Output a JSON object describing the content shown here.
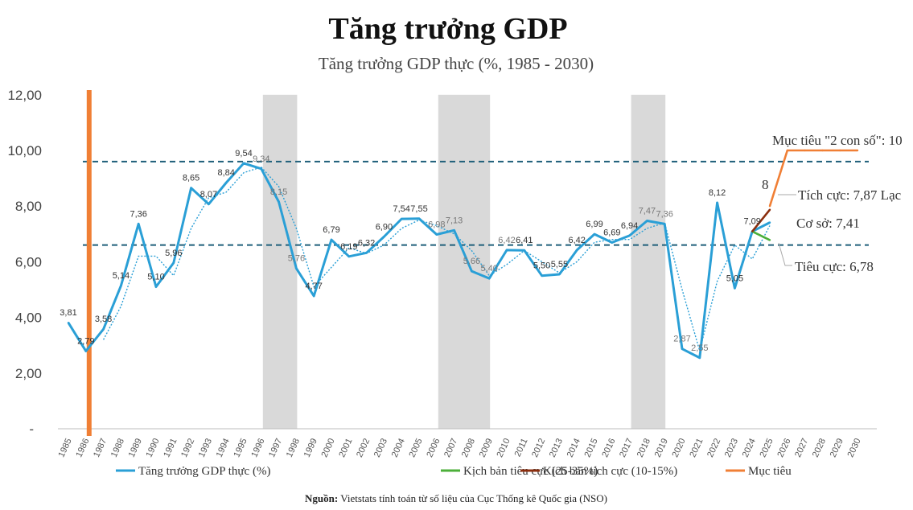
{
  "chart_data": {
    "type": "line",
    "title": "Tăng trưởng GDP",
    "subtitle": "Tăng trưởng GDP thực (%, 1985 - 2030)",
    "ylim": [
      0,
      12
    ],
    "y_ticks": [
      "-",
      "2,00",
      "4,00",
      "6,00",
      "8,00",
      "10,00",
      "12,00"
    ],
    "x_years": [
      "1985",
      "1986",
      "1987",
      "1988",
      "1989",
      "1990",
      "1991",
      "1992",
      "1993",
      "1994",
      "1995",
      "1996",
      "1997",
      "1998",
      "1999",
      "2000",
      "2001",
      "2002",
      "2003",
      "2004",
      "2005",
      "2006",
      "2007",
      "2008",
      "2009",
      "2010",
      "2011",
      "2012",
      "2013",
      "2014",
      "2015",
      "2016",
      "2017",
      "2018",
      "2019",
      "2020",
      "2021",
      "2022",
      "2023",
      "2024",
      "2025",
      "2026",
      "2027",
      "2028",
      "2029",
      "2030"
    ],
    "series": [
      {
        "name": "Tăng trưởng GDP thực (%)",
        "color": "#2a9fd6",
        "years": [
          1985,
          1986,
          1987,
          1988,
          1989,
          1990,
          1991,
          1992,
          1993,
          1994,
          1995,
          1996,
          1997,
          1998,
          1999,
          2000,
          2001,
          2002,
          2003,
          2004,
          2005,
          2006,
          2007,
          2008,
          2009,
          2010,
          2011,
          2012,
          2013,
          2014,
          2015,
          2016,
          2017,
          2018,
          2019,
          2020,
          2021,
          2022,
          2023,
          2024,
          2025
        ],
        "values": [
          3.81,
          2.79,
          3.58,
          5.14,
          7.36,
          5.1,
          5.96,
          8.65,
          8.07,
          8.84,
          9.54,
          9.34,
          8.15,
          5.76,
          4.77,
          6.79,
          6.19,
          6.32,
          6.9,
          7.54,
          7.55,
          6.98,
          7.13,
          5.66,
          5.4,
          6.42,
          6.41,
          5.5,
          5.55,
          6.42,
          6.99,
          6.69,
          6.94,
          7.47,
          7.36,
          2.87,
          2.55,
          8.12,
          5.05,
          7.09,
          7.41
        ],
        "labels": [
          "3,81",
          "2,79",
          "3,58",
          "5,14",
          "7,36",
          "5,10",
          "5,96",
          "8,65",
          "8,07",
          "8,84",
          "9,54",
          "9,34",
          "8,15",
          "5,76",
          "4,77",
          "6,79",
          "6,19",
          "6,32",
          "6,90",
          "7,54",
          "7,55",
          "6,98",
          "7,13",
          "5,66",
          "5,40",
          "6,42",
          "6,41",
          "5,50",
          "5,55",
          "6,42",
          "6,99",
          "6,69",
          "6,94",
          "7,47",
          "7,36",
          "2,87",
          "2,55",
          "8,12",
          "5,05",
          "7,09",
          ""
        ]
      },
      {
        "name": "Kịch bản tiêu cực (25-35%)",
        "color": "#4caf3a",
        "years": [
          2024,
          2025
        ],
        "values": [
          7.09,
          6.78
        ]
      },
      {
        "name": "Kịch bản tích cực (10-15%)",
        "color": "#8b2e0e",
        "years": [
          2024,
          2025
        ],
        "values": [
          7.09,
          7.87
        ]
      },
      {
        "name": "Mục tiêu",
        "color": "#f07f35",
        "years": [
          2025,
          2026,
          2027,
          2028,
          2029,
          2030
        ],
        "values": [
          8,
          10,
          10,
          10,
          10,
          10
        ]
      }
    ],
    "trend_dotted": {
      "color": "#2a9fd6",
      "years": [
        1987,
        1988,
        1989,
        1990,
        1991,
        1992,
        1993,
        1994,
        1995,
        1996,
        1997,
        1998,
        1999,
        2000,
        2001,
        2002,
        2003,
        2004,
        2005,
        2006,
        2007,
        2008,
        2009,
        2010,
        2011,
        2012,
        2013,
        2014,
        2015,
        2016,
        2017,
        2018,
        2019,
        2020,
        2021,
        2022,
        2023,
        2024,
        2025
      ],
      "values": [
        3.2,
        4.4,
        6.2,
        6.2,
        5.5,
        7.2,
        8.3,
        8.5,
        9.2,
        9.4,
        8.7,
        7.2,
        5.1,
        5.8,
        6.5,
        6.3,
        6.6,
        7.2,
        7.5,
        7.3,
        7.0,
        6.4,
        5.5,
        5.9,
        6.4,
        6.0,
        5.6,
        6.0,
        6.7,
        6.8,
        6.8,
        7.2,
        7.4,
        5.0,
        2.8,
        5.3,
        6.6,
        6.1,
        7.3
      ]
    },
    "reference_lines": [
      {
        "value": 9.6,
        "color": "#1f5f7a",
        "style": "dashed"
      },
      {
        "value": 6.6,
        "color": "#1f5f7a",
        "style": "dashed"
      }
    ],
    "shaded_periods": [
      {
        "from": 1996,
        "to": 1998
      },
      {
        "from": 2006,
        "to": 2009
      },
      {
        "from": 2017,
        "to": 2019
      }
    ],
    "highlight_year": 1986,
    "highlight_color": "#f07f35",
    "annotations": {
      "target": "Mục tiêu \"2 con số\": 10",
      "target_start": "8",
      "positive": "Tích cực: 7,87 Lạc",
      "base": "Cơ sở: 7,41",
      "negative": "Tiêu cực: 6,78"
    },
    "legend": [
      {
        "label": "Tăng trưởng GDP thực (%)",
        "color": "#2a9fd6"
      },
      {
        "label": "Kịch bản tiêu cực (25-35%)",
        "color": "#4caf3a"
      },
      {
        "label": "Kịch bản tích cực (10-15%)",
        "color": "#8b2e0e"
      },
      {
        "label": "Mục tiêu",
        "color": "#f07f35"
      }
    ]
  },
  "source": {
    "prefix": "Nguồn:",
    "text": " Vietstats tính toán từ số liệu của Cục Thống kê Quốc gia (NSO)"
  }
}
